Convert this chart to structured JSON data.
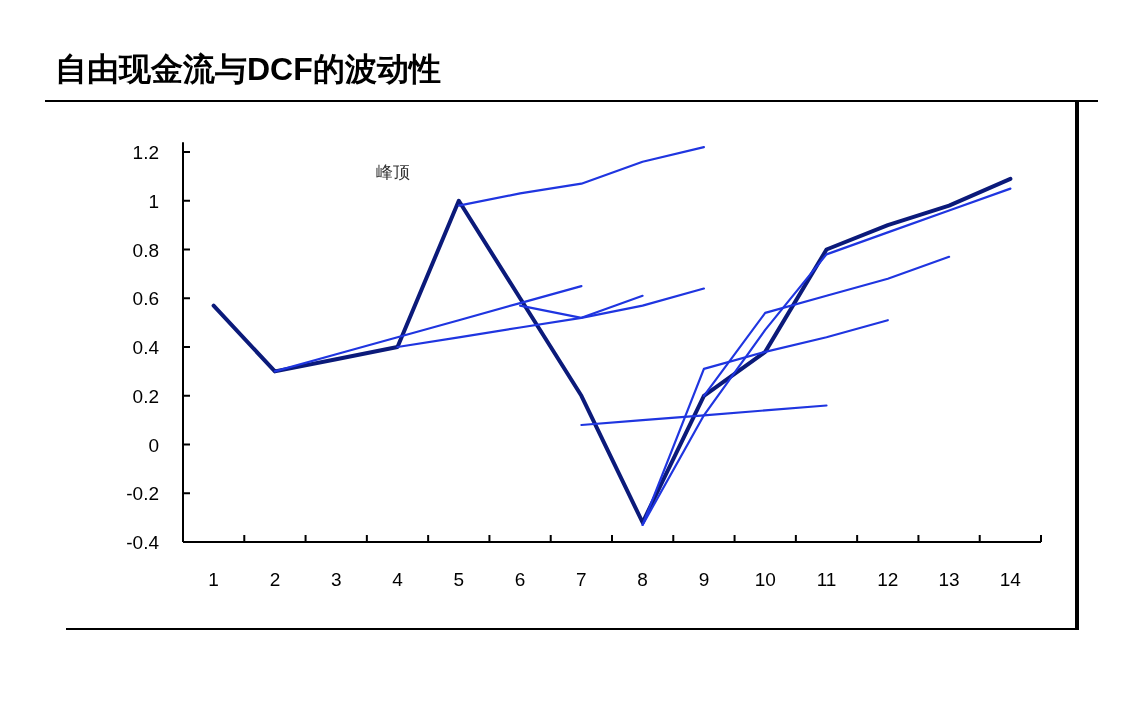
{
  "chart_data": {
    "type": "line",
    "title": "自由现金流与DCF的波动性",
    "categories": [
      "1",
      "2",
      "3",
      "4",
      "5",
      "6",
      "7",
      "8",
      "9",
      "10",
      "11",
      "12",
      "13",
      "14"
    ],
    "series": [
      {
        "color": "#0b1a7a",
        "values": [
          0.57,
          0.3,
          0.35,
          0.4,
          1.0,
          0.6,
          0.2,
          -0.32,
          0.2,
          0.38,
          0.8,
          0.9,
          0.98,
          1.09
        ]
      },
      {
        "color": "#1f35e0",
        "values": [
          null,
          null,
          null,
          null,
          0.98,
          1.03,
          1.07,
          1.16,
          1.22,
          null,
          null,
          null,
          null,
          null
        ]
      },
      {
        "color": "#1f35e0",
        "values": [
          null,
          0.3,
          0.37,
          0.44,
          0.51,
          0.58,
          0.65,
          null,
          null,
          null,
          null,
          null,
          null,
          null
        ]
      },
      {
        "color": "#1f35e0",
        "values": [
          null,
          null,
          null,
          0.4,
          0.44,
          0.48,
          0.52,
          0.57,
          0.64,
          null,
          null,
          null,
          null,
          null
        ]
      },
      {
        "color": "#1f35e0",
        "values": [
          null,
          null,
          null,
          null,
          null,
          0.57,
          0.52,
          0.61,
          null,
          null,
          null,
          null,
          null,
          null
        ]
      },
      {
        "color": "#1f35e0",
        "values": [
          null,
          null,
          null,
          null,
          null,
          null,
          0.08,
          0.1,
          0.12,
          0.14,
          0.16,
          null,
          null,
          null
        ]
      },
      {
        "color": "#1f35e0",
        "values": [
          null,
          null,
          null,
          null,
          null,
          null,
          null,
          -0.33,
          0.31,
          0.38,
          0.44,
          0.51,
          null,
          null
        ]
      },
      {
        "color": "#1f35e0",
        "values": [
          null,
          null,
          null,
          null,
          null,
          null,
          null,
          null,
          0.2,
          0.54,
          0.61,
          0.68,
          0.77,
          null
        ]
      },
      {
        "color": "#1f35e0",
        "values": [
          null,
          null,
          null,
          null,
          null,
          null,
          null,
          -0.33,
          0.12,
          0.47,
          0.78,
          0.87,
          0.96,
          1.05
        ]
      }
    ],
    "ylim": [
      -0.4,
      1.24
    ],
    "yticks": [
      -0.4,
      -0.2,
      0,
      0.2,
      0.4,
      0.6,
      0.8,
      1,
      1.2
    ],
    "annotations": [
      "峰顶"
    ]
  }
}
